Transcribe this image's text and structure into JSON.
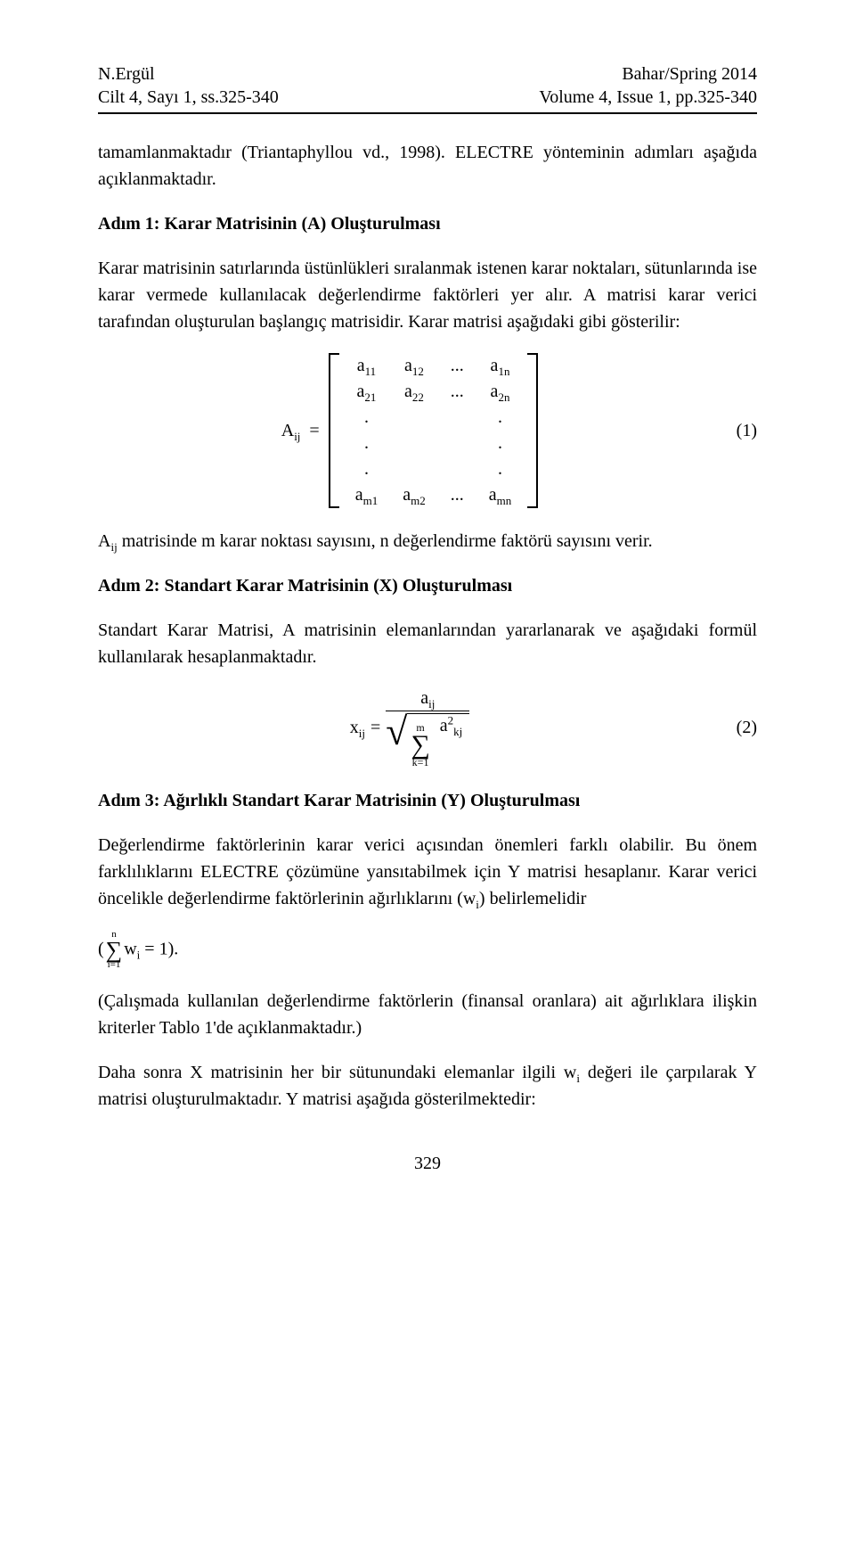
{
  "header": {
    "author": "N.Ergül",
    "cilt": "Cilt 4, Sayı 1, ss.325-340",
    "season": "Bahar/Spring 2014",
    "volume": "Volume 4, Issue 1, pp.325-340"
  },
  "p_intro": "tamamlanmaktadır (Triantaphyllou vd., 1998). ELECTRE yönteminin adımları aşağıda açıklanmaktadır.",
  "h_step1": "Adım 1: Karar Matrisinin (A) Oluşturulması",
  "p_step1": "Karar matrisinin satırlarında üstünlükleri sıralanmak istenen karar noktaları, sütunlarında ise karar vermede kullanılacak değerlendirme faktörleri yer alır. A matrisi karar verici tarafından oluşturulan başlangıç matrisidir. Karar matrisi aşağıdaki gibi gösterilir:",
  "eq1": {
    "lhs_var": "A",
    "lhs_sub": "ij",
    "eq_sign": "=",
    "rows": [
      [
        "a<span class=\"sub\">11</span>",
        "a<span class=\"sub\">12</span>",
        "...",
        "a<span class=\"sub\">1n</span>"
      ],
      [
        "a<span class=\"sub\">21</span>",
        "a<span class=\"sub\">22</span>",
        "...",
        "a<span class=\"sub\">2n</span>"
      ],
      [
        ".",
        "",
        "",
        "."
      ],
      [
        ".",
        "",
        "",
        "."
      ],
      [
        ".",
        "",
        "",
        "."
      ],
      [
        "a<span class=\"sub\">m1</span>",
        "a<span class=\"sub\">m2</span>",
        "...",
        "a<span class=\"sub\">mn</span>"
      ]
    ],
    "label": "(1)"
  },
  "p_after_eq1_prefix": "A",
  "p_after_eq1_sub": "ij",
  "p_after_eq1_rest": " matrisinde m karar noktası sayısını, n değerlendirme faktörü sayısını verir.",
  "h_step2": "Adım 2: Standart Karar Matrisinin (X) Oluşturulması",
  "p_step2": "Standart Karar Matrisi, A matrisinin elemanlarından yararlanarak ve aşağıdaki formül kullanılarak hesaplanmaktadır.",
  "eq2": {
    "lhs_var": "x",
    "lhs_sub": "ij",
    "eq_sign": " = ",
    "num_var": "a",
    "num_sub": "ij",
    "sum_top": "m",
    "sum_bot": "k=1",
    "den_var": "a",
    "den_sub": "kj",
    "den_sup": "2",
    "label": "(2)"
  },
  "h_step3": "Adım 3: Ağırlıklı Standart Karar Matrisinin (Y) Oluşturulması",
  "p_step3_a": "Değerlendirme faktörlerinin karar verici açısından önemleri farklı olabilir. Bu önem farklılıklarını ELECTRE çözümüne yansıtabilmek için Y matrisi hesaplanır. Karar verici öncelikle değerlendirme faktörlerinin ağırlıklarını (",
  "p_step3_w": "w",
  "p_step3_wi": "i",
  "p_step3_b": ") belirlemelidir",
  "p_step3_paren_open": "(",
  "p_step3_sum_top": "n",
  "p_step3_sum_bot": "i=1",
  "p_step3_eq1_rhs": " = 1).",
  "p_note": "(Çalışmada kullanılan değerlendirme faktörlerin (finansal oranlara) ait ağırlıklara ilişkin kriterler Tablo 1'de açıklanmaktadır.)",
  "p_final_a": "Daha sonra X matrisinin her bir sütunundaki elemanlar ilgili ",
  "p_final_w": "w",
  "p_final_wi": "i",
  "p_final_b": " değeri ile çarpılarak Y matrisi oluşturulmaktadır. Y matrisi aşağıda gösterilmektedir:",
  "page_number": "329"
}
